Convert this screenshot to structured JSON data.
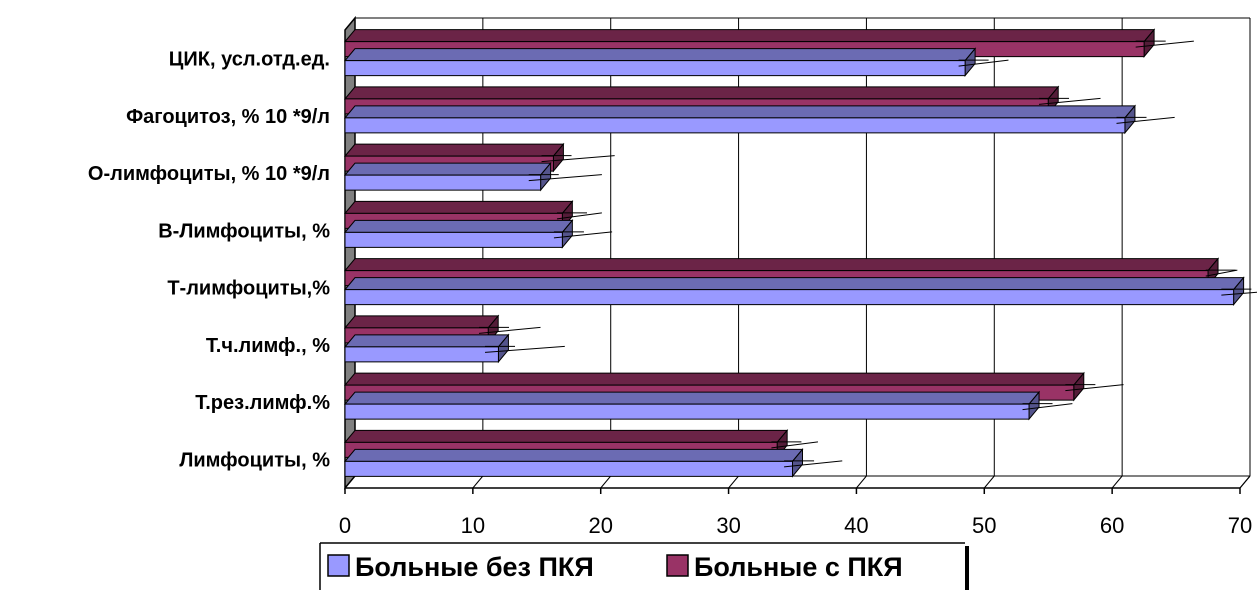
{
  "chart_data": {
    "type": "bar",
    "orientation": "horizontal",
    "style": "3d",
    "categories": [
      "Лимфоциты,  %",
      "Т.рез.лимф.%",
      "Т.ч.лимф., %",
      "Т-лимфоциты,%",
      "В-Лимфоциты, %",
      "О-лимфоциты, % 10 *9/л",
      "Фагоцитоз, % 10 *9/л",
      "ЦИК, усл.отд.ед."
    ],
    "series": [
      {
        "name": "Больные без ПКЯ",
        "color": "#9999ff",
        "values": [
          35,
          53.5,
          12,
          69.5,
          17,
          15.3,
          61,
          48.5
        ],
        "errors": [
          3.5,
          3,
          4.8,
          4.5,
          3.5,
          4.4,
          3.5,
          3
        ]
      },
      {
        "name": "Больные с ПКЯ",
        "color": "#993366",
        "values": [
          33.8,
          57,
          11.2,
          67.5,
          17,
          16.3,
          55,
          62.5
        ],
        "errors": [
          2.8,
          3.5,
          3.7,
          1.9,
          2.7,
          4.4,
          3.7,
          3.5
        ]
      }
    ],
    "xlim": [
      0,
      70
    ],
    "xticks": [
      "0",
      "10",
      "20",
      "30",
      "40",
      "50",
      "60",
      "70"
    ],
    "grid": true,
    "legend": "bottom"
  }
}
